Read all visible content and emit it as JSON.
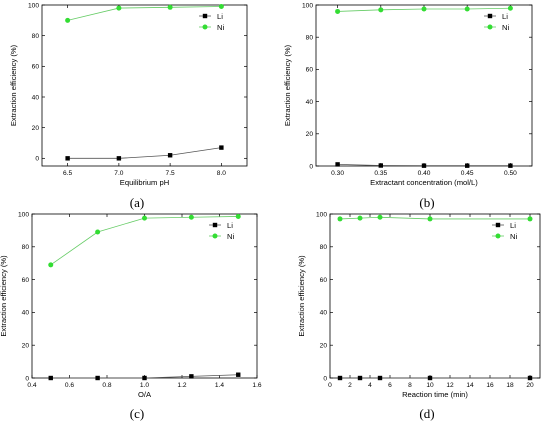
{
  "colors": {
    "li": "#000000",
    "li_line": "#555555",
    "ni": "#33dd33",
    "ni_line": "#66cc66"
  },
  "chart_data": [
    {
      "type": "line",
      "panel_label": "(a)",
      "xlabel": "Equilibrium pH",
      "ylabel": "Extraction efficiency (%)",
      "xlim": [
        6.25,
        8.25
      ],
      "ylim": [
        -5,
        100
      ],
      "xticks": [
        "6.5",
        "7.0",
        "7.5",
        "8.0"
      ],
      "xtick_values": [
        6.5,
        7.0,
        7.5,
        8.0
      ],
      "yticks": [
        "0",
        "20",
        "40",
        "60",
        "80",
        "100"
      ],
      "ytick_values": [
        0,
        20,
        40,
        60,
        80,
        100
      ],
      "legend_position": "top-right",
      "series": [
        {
          "name": "Li",
          "x": [
            6.5,
            7.0,
            7.5,
            8.0
          ],
          "values": [
            0,
            0,
            2,
            7
          ]
        },
        {
          "name": "Ni",
          "x": [
            6.5,
            7.0,
            7.5,
            8.0
          ],
          "values": [
            90,
            98,
            98.5,
            99
          ]
        }
      ]
    },
    {
      "type": "line",
      "panel_label": "(b)",
      "xlabel": "Extractant concentration (mol/L)",
      "ylabel": "Extraction efficiency (%)",
      "xlim": [
        0.275,
        0.525
      ],
      "ylim": [
        0,
        100
      ],
      "xticks": [
        "0.30",
        "0.35",
        "0.40",
        "0.45",
        "0.50"
      ],
      "xtick_values": [
        0.3,
        0.35,
        0.4,
        0.45,
        0.5
      ],
      "yticks": [
        "0",
        "20",
        "40",
        "60",
        "80",
        "100"
      ],
      "ytick_values": [
        0,
        20,
        40,
        60,
        80,
        100
      ],
      "legend_position": "top-right",
      "series": [
        {
          "name": "Li",
          "x": [
            0.3,
            0.35,
            0.4,
            0.45,
            0.5
          ],
          "values": [
            1,
            0.3,
            0.2,
            0.2,
            0.2
          ]
        },
        {
          "name": "Ni",
          "x": [
            0.3,
            0.35,
            0.4,
            0.45,
            0.5
          ],
          "values": [
            96,
            97,
            97.5,
            97.5,
            98
          ]
        }
      ]
    },
    {
      "type": "line",
      "panel_label": "(c)",
      "xlabel": "O/A",
      "ylabel": "Extraction efficiency (%)",
      "xlim": [
        0.4,
        1.6
      ],
      "ylim": [
        0,
        100
      ],
      "xticks": [
        "0.4",
        "0.6",
        "0.8",
        "1.0",
        "1.2",
        "1.4",
        "1.6"
      ],
      "xtick_values": [
        0.4,
        0.6,
        0.8,
        1.0,
        1.2,
        1.4,
        1.6
      ],
      "yticks": [
        "0",
        "20",
        "40",
        "60",
        "80",
        "100"
      ],
      "ytick_values": [
        0,
        20,
        40,
        60,
        80,
        100
      ],
      "legend_position": "top-right",
      "series": [
        {
          "name": "Li",
          "x": [
            0.5,
            0.75,
            1.0,
            1.25,
            1.5
          ],
          "values": [
            0,
            0,
            0,
            1,
            2
          ]
        },
        {
          "name": "Ni",
          "x": [
            0.5,
            0.75,
            1.0,
            1.25,
            1.5
          ],
          "values": [
            69,
            89,
            97.5,
            98,
            98.5
          ]
        }
      ]
    },
    {
      "type": "line",
      "panel_label": "(d)",
      "xlabel": "Reaction time (min)",
      "ylabel": "Extraction efficiency (%)",
      "xlim": [
        0,
        21
      ],
      "ylim": [
        0,
        100
      ],
      "xticks": [
        "0",
        "2",
        "4",
        "6",
        "8",
        "10",
        "12",
        "14",
        "16",
        "18",
        "20"
      ],
      "xtick_values": [
        0,
        2,
        4,
        6,
        8,
        10,
        12,
        14,
        16,
        18,
        20
      ],
      "yticks": [
        "0",
        "20",
        "40",
        "60",
        "80",
        "100"
      ],
      "ytick_values": [
        0,
        20,
        40,
        60,
        80,
        100
      ],
      "legend_position": "top-right",
      "series": [
        {
          "name": "Li",
          "x": [
            1,
            3,
            5,
            10,
            20
          ],
          "values": [
            0,
            0,
            0,
            0,
            0
          ]
        },
        {
          "name": "Ni",
          "x": [
            1,
            3,
            5,
            10,
            20
          ],
          "values": [
            97,
            97.5,
            98,
            97,
            97
          ]
        }
      ]
    }
  ]
}
